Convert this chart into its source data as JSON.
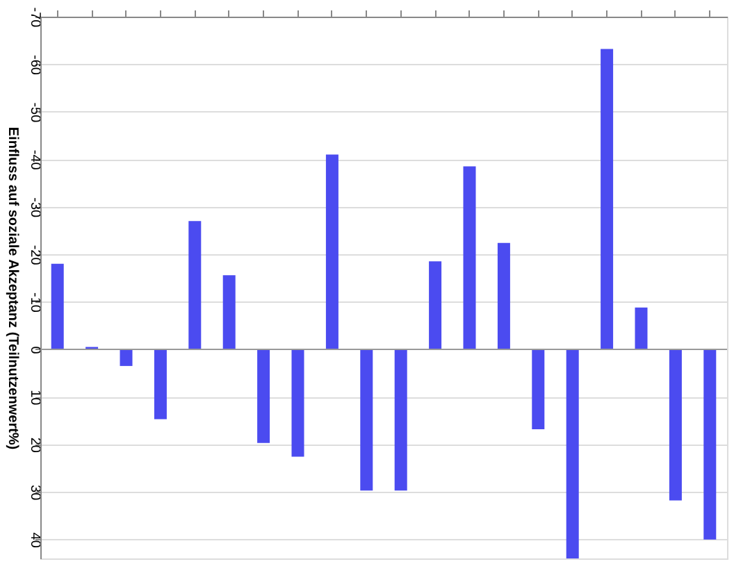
{
  "chart_data": {
    "type": "bar",
    "ylabel": "Einfluss auf soziale Akzeptanz (Teilnutzenwert%)",
    "categories": [
      null,
      null,
      null,
      null,
      null,
      null,
      null,
      null,
      null,
      null,
      null,
      null,
      null,
      null,
      null,
      null,
      null,
      null,
      null,
      null
    ],
    "values": [
      -18,
      -0.5,
      3.5,
      14.7,
      -27,
      -15.6,
      19.7,
      22.6,
      -41,
      29.7,
      29.7,
      -18.5,
      -38.5,
      -22.4,
      16.8,
      44,
      -63.2,
      -8.8,
      31.8,
      40
    ],
    "color": "#4b4bf0",
    "ylim": [
      44,
      -70
    ],
    "yticks": [
      -70,
      -60,
      -50,
      -40,
      -30,
      -20,
      -10,
      0,
      10,
      20,
      30,
      40
    ],
    "grid": "y",
    "tick_labels": "y",
    "ref_lines": [
      {
        "axis": "y",
        "value": 0
      }
    ]
  }
}
